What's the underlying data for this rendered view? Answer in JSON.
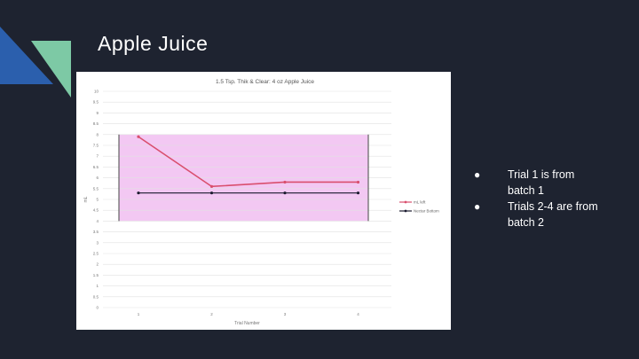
{
  "slide": {
    "title": "Apple Juice",
    "bullets": [
      {
        "text": "Trial 1 is from batch 1"
      },
      {
        "text": "Trials 2-4 are from batch 2"
      }
    ]
  },
  "colors": {
    "background": "#1e2330",
    "accent_blue": "#2b5fad",
    "accent_green": "#7dc9a5",
    "band_fill": "#f3c8f3",
    "series1": "#d94f6e",
    "series2": "#1a1a2e"
  },
  "chart_data": {
    "type": "line",
    "title": "1.5 Tsp. Thik & Clear: 4 oz Apple Juice",
    "xlabel": "Trial Number",
    "ylabel": "mL",
    "x": [
      1,
      2,
      3,
      4
    ],
    "x_tick_labels": [
      "1",
      "2",
      "3",
      "4"
    ],
    "ylim": [
      0,
      10
    ],
    "y_ticks": [
      0,
      0.5,
      1,
      1.5,
      2,
      2.5,
      3,
      3.5,
      4,
      4.5,
      5,
      5.5,
      6,
      6.5,
      7,
      7.5,
      8,
      8.5,
      9,
      9.5,
      10
    ],
    "y_tick_labels": [
      "0",
      "0.5",
      "1",
      "1.5",
      "2",
      "2.5",
      "3",
      "3.5",
      "4",
      "4.5",
      "5",
      "5.5",
      "6",
      "6.5",
      "7",
      "7.5",
      "8",
      "8.5",
      "9",
      "9.5",
      "10"
    ],
    "grid": true,
    "band": {
      "from": 4,
      "to": 8
    },
    "legend_position": "right",
    "series": [
      {
        "name": "mL left",
        "values": [
          7.9,
          5.6,
          5.8,
          5.8
        ]
      },
      {
        "name": "Nectar Bottom",
        "values": [
          5.3,
          5.3,
          5.3,
          5.3
        ]
      }
    ]
  }
}
